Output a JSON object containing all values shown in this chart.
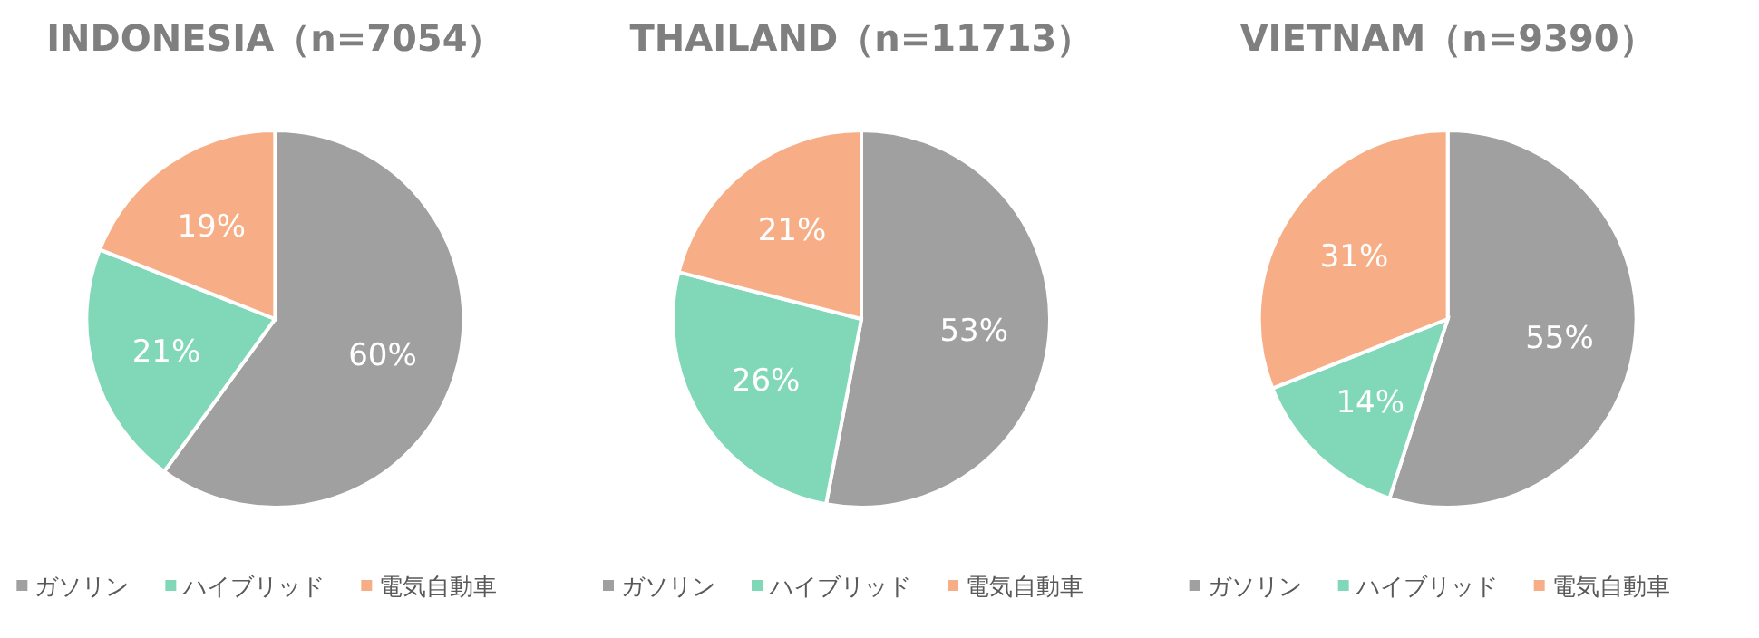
{
  "chart_data": [
    {
      "type": "pie",
      "title": "INDONESIA（n=7054）",
      "categories": [
        "ガソリン",
        "ハイブリッド",
        "電気自動車"
      ],
      "values": [
        60,
        21,
        19
      ],
      "value_labels": [
        "60%",
        "21%",
        "19%"
      ],
      "colors": [
        "#a0a0a0",
        "#80d8b9",
        "#f7ae86"
      ],
      "legend": "bottom"
    },
    {
      "type": "pie",
      "title": "THAILAND（n=11713）",
      "categories": [
        "ガソリン",
        "ハイブリッド",
        "電気自動車"
      ],
      "values": [
        53,
        26,
        21
      ],
      "value_labels": [
        "53%",
        "26%",
        "21%"
      ],
      "colors": [
        "#a0a0a0",
        "#80d8b9",
        "#f7ae86"
      ],
      "legend": "bottom"
    },
    {
      "type": "pie",
      "title": "VIETNAM（n=9390）",
      "categories": [
        "ガソリン",
        "ハイブリッド",
        "電気自動車"
      ],
      "values": [
        55,
        14,
        31
      ],
      "value_labels": [
        "55%",
        "14%",
        "31%"
      ],
      "colors": [
        "#a0a0a0",
        "#80d8b9",
        "#f7ae86"
      ],
      "legend": "bottom"
    }
  ]
}
